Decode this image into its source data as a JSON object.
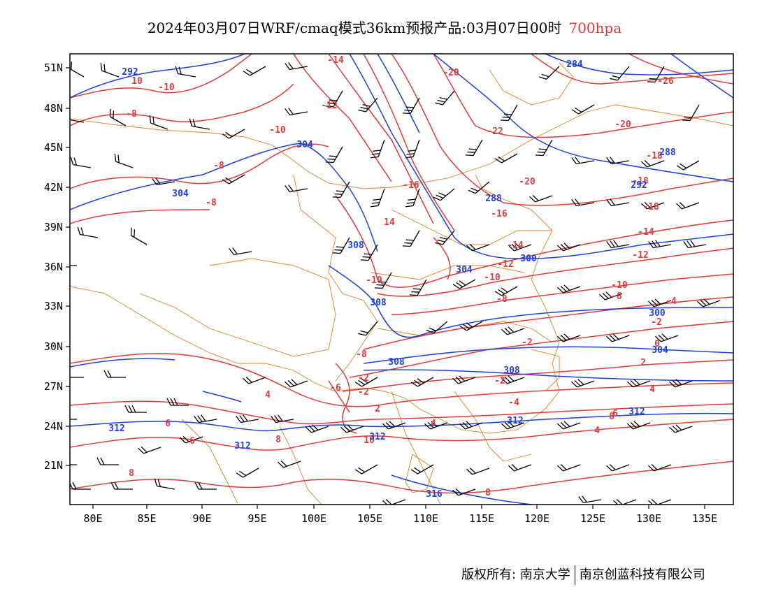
{
  "title": {
    "text": "2024年03月07日WRF/cmaq模式36km预报产品:03月07日00时",
    "level": "700hpa",
    "level_color": "#e03b3b"
  },
  "axes": {
    "lon_labels": [
      "80E",
      "85E",
      "90E",
      "95E",
      "100E",
      "105E",
      "110E",
      "115E",
      "120E",
      "125E",
      "130E",
      "135E"
    ],
    "lat_labels": [
      "51N",
      "48N",
      "45N",
      "42N",
      "39N",
      "36N",
      "33N",
      "30N",
      "27N",
      "24N",
      "21N"
    ]
  },
  "colors": {
    "temperature": "#e03b3b",
    "height": "#1f3fe0",
    "boundary": "#d9822b",
    "wind": "#000000"
  },
  "temperature_labels": [
    "-14",
    "-20",
    "-26",
    "10",
    "-10",
    "-8",
    "-12",
    "-22",
    "-20",
    "-10",
    "-8",
    "-8",
    "-18",
    "-16",
    "-18",
    "-20",
    "-18",
    "14",
    "-16",
    "-14",
    "-14",
    "-12",
    "-12",
    "-10",
    "-10",
    "-8",
    "-8",
    "-10",
    "-4",
    "-2",
    "-2",
    "0",
    "-8",
    "-2",
    "-2",
    "2",
    "-6",
    "-2",
    "-4",
    "4",
    "2",
    "4",
    "4",
    "4",
    "6",
    "6",
    "8",
    "8",
    "10",
    "8",
    "6",
    "8"
  ],
  "height_labels": [
    "292",
    "284",
    "304",
    "304",
    "288",
    "292",
    "288",
    "308",
    "304",
    "300",
    "308",
    "300",
    "304",
    "308",
    "308",
    "312",
    "312",
    "312",
    "312",
    "312",
    "316"
  ],
  "footer": {
    "left": "版权所有: 南京大学",
    "right": "南京创蓝科技有限公司"
  }
}
